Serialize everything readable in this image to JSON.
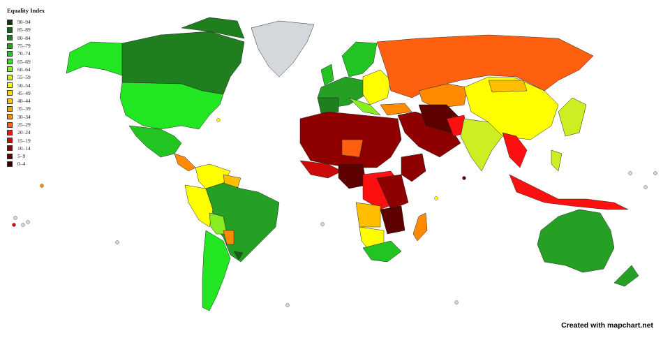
{
  "legend": {
    "title": "Equality Index",
    "items": [
      {
        "label": "90–94",
        "color": "#0b3a0b"
      },
      {
        "label": "85–89",
        "color": "#176217"
      },
      {
        "label": "80–84",
        "color": "#1f7f1f"
      },
      {
        "label": "75–79",
        "color": "#25a025"
      },
      {
        "label": "70–74",
        "color": "#22c422"
      },
      {
        "label": "65–69",
        "color": "#22e622"
      },
      {
        "label": "60–64",
        "color": "#88ee22"
      },
      {
        "label": "55–59",
        "color": "#ccee22"
      },
      {
        "label": "50–54",
        "color": "#ffff00"
      },
      {
        "label": "45–49",
        "color": "#ffd800"
      },
      {
        "label": "40–44",
        "color": "#ffbf00"
      },
      {
        "label": "35–39",
        "color": "#f5a300"
      },
      {
        "label": "30–34",
        "color": "#ff8a00"
      },
      {
        "label": "25–29",
        "color": "#ff6010"
      },
      {
        "label": "20–24",
        "color": "#ff1010"
      },
      {
        "label": "15–19",
        "color": "#cc0a0a"
      },
      {
        "label": "10–14",
        "color": "#8e0000"
      },
      {
        "label": "5–9",
        "color": "#5c0000"
      },
      {
        "label": "0–4",
        "color": "#300000"
      }
    ]
  },
  "no_data_color": "#d4d8dc",
  "credit": "Created with mapchart.net"
}
